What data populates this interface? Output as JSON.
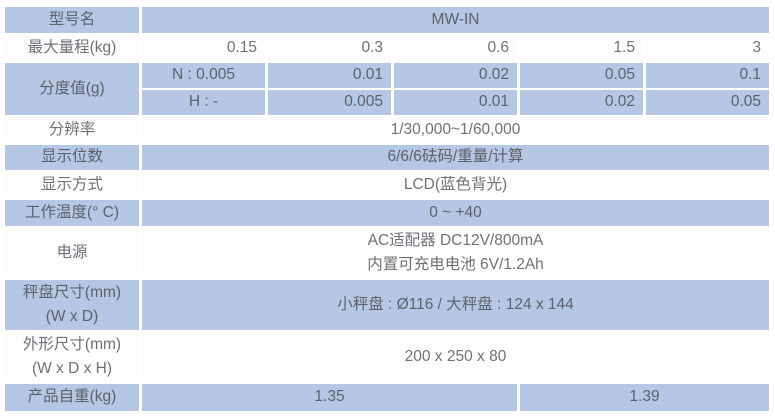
{
  "page": {
    "background": "#ffffff",
    "colors": {
      "row_blue": "#b5c7e4",
      "row_white": "#fdfdfd",
      "text_on_blue": "#5d6269",
      "text_on_white": "#6e7278"
    }
  },
  "table": {
    "model": {
      "label": "型号名",
      "value": "MW-IN"
    },
    "capacity": {
      "label": "最大量程(kg)",
      "values": [
        "0.15",
        "0.3",
        "0.6",
        "1.5",
        "3"
      ]
    },
    "division": {
      "label": "分度值(g)",
      "n": {
        "head": "N : 0.005",
        "values": [
          "0.01",
          "0.02",
          "0.05",
          "0.1"
        ]
      },
      "h": {
        "head": "H : -",
        "values": [
          "0.005",
          "0.01",
          "0.02",
          "0.05"
        ]
      }
    },
    "resolution": {
      "label": "分辨率",
      "value": "1/30,000~1/60,000"
    },
    "display_digits": {
      "label": "显示位数",
      "value": "6/6/6砝码/重量/计算"
    },
    "display_type": {
      "label": "显示方式",
      "value": "LCD(蓝色背光)"
    },
    "operating_temp": {
      "label": "工作温度(° C)",
      "value": "0 ~ +40"
    },
    "power": {
      "label": "电源",
      "line1": "AC适配器 DC12V/800mA",
      "line2": "内置可充电电池 6V/1.2Ah"
    },
    "pan_size": {
      "label_line1": "秤盘尺寸(mm)",
      "label_line2": "(W x D)",
      "value": "小秤盘 : Ø116 / 大秤盘 : 124 x 144"
    },
    "dimensions": {
      "label_line1": "外形尺寸(mm)",
      "label_line2": "(W x D x H)",
      "value": "200 x 250 x 80"
    },
    "net_weight": {
      "label": "产品自重(kg)",
      "value_left": "1.35",
      "value_right": "1.39"
    }
  }
}
